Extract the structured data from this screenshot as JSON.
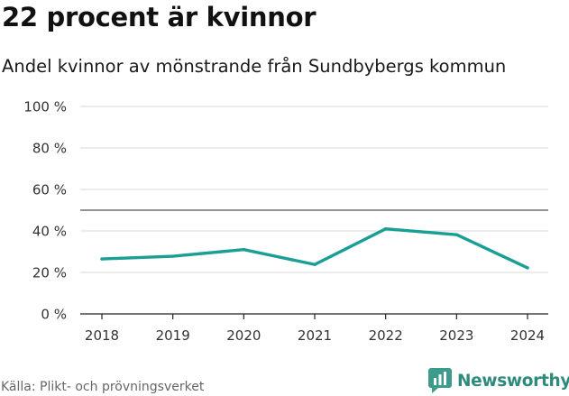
{
  "header": {
    "title": "22 procent är kvinnor",
    "subtitle": "Andel kvinnor av mönstrande från Sundbybergs kommun"
  },
  "footer": {
    "source": "Källa: Plikt- och prövningsverket",
    "brand": "Newsworthy",
    "brand_icon": "bar-chart-logo-icon"
  },
  "colors": {
    "line": "#1a9e95",
    "reference_line": "#555555",
    "grid": "#d9d9d9",
    "brand": "#2e8b7b"
  },
  "chart_data": {
    "type": "line",
    "title": "22 procent är kvinnor",
    "subtitle": "Andel kvinnor av mönstrande från Sundbybergs kommun",
    "xlabel": "",
    "ylabel": "",
    "categories": [
      "2018",
      "2019",
      "2020",
      "2021",
      "2022",
      "2023",
      "2024"
    ],
    "series": [
      {
        "name": "Andel kvinnor",
        "values": [
          26.5,
          27.8,
          31.0,
          23.8,
          41.0,
          38.2,
          22.2
        ]
      }
    ],
    "reference_line": 50,
    "ylim": [
      0,
      100
    ],
    "yticks": [
      0,
      20,
      40,
      60,
      80,
      100
    ],
    "ytick_labels": [
      "0 %",
      "20 %",
      "40 %",
      "60 %",
      "80 %",
      "100 %"
    ],
    "grid": true,
    "legend": "none"
  }
}
